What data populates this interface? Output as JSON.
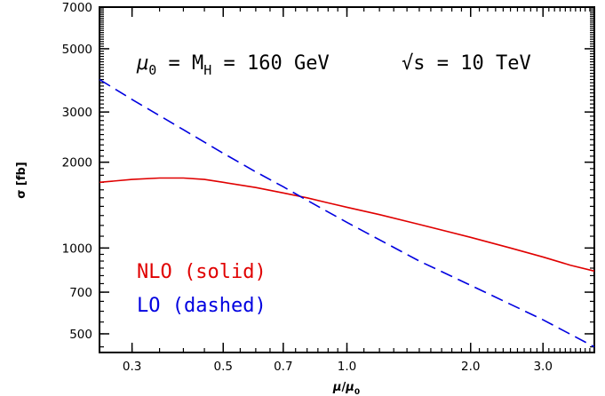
{
  "chart_data": {
    "type": "line",
    "title": "",
    "xlabel": "μ/μ0",
    "ylabel": "σ [fb]",
    "x_scale": "log",
    "y_scale": "log",
    "xlim": [
      0.25,
      4.0
    ],
    "ylim": [
      430,
      7000
    ],
    "grid": false,
    "x_ticks": [
      {
        "value": 0.3,
        "label": "0.3"
      },
      {
        "value": 0.5,
        "label": "0.5"
      },
      {
        "value": 0.7,
        "label": "0.7"
      },
      {
        "value": 1.0,
        "label": "1.0"
      },
      {
        "value": 2.0,
        "label": "2.0"
      },
      {
        "value": 3.0,
        "label": "3.0"
      }
    ],
    "y_ticks": [
      {
        "value": 500,
        "label": "500"
      },
      {
        "value": 700,
        "label": "700"
      },
      {
        "value": 1000,
        "label": "1000"
      },
      {
        "value": 2000,
        "label": "2000"
      },
      {
        "value": 3000,
        "label": "3000"
      },
      {
        "value": 5000,
        "label": "5000"
      },
      {
        "value": 7000,
        "label": "7000"
      }
    ],
    "annotations": {
      "scale_mu": "μ",
      "scale_sub": "0",
      "scale_eq": " = M",
      "scale_sub2": "H",
      "scale_value": " = 160 GeV",
      "energy": "√s = 10 TeV"
    },
    "legend": [
      {
        "label": "NLO (solid)",
        "color": "#e00000"
      },
      {
        "label": "LO (dashed)",
        "color": "#0000e0"
      }
    ],
    "series": [
      {
        "style": "solid",
        "color": "#e00000",
        "x": [
          0.25,
          0.3,
          0.35,
          0.4,
          0.45,
          0.5,
          0.6,
          0.7,
          0.8,
          0.9,
          1.0,
          1.2,
          1.5,
          2.0,
          2.5,
          3.0,
          3.5,
          4.0
        ],
        "y": [
          1700,
          1740,
          1760,
          1760,
          1740,
          1700,
          1630,
          1560,
          1500,
          1440,
          1390,
          1310,
          1210,
          1090,
          1000,
          930,
          870,
          830
        ]
      },
      {
        "style": "dashed",
        "color": "#0000e0",
        "x": [
          0.25,
          0.3,
          0.4,
          0.5,
          0.6,
          0.7,
          0.8,
          1.0,
          1.5,
          2.0,
          3.0,
          4.0
        ],
        "y": [
          3900,
          3320,
          2600,
          2150,
          1850,
          1640,
          1470,
          1230,
          900,
          740,
          560,
          450
        ]
      }
    ]
  }
}
